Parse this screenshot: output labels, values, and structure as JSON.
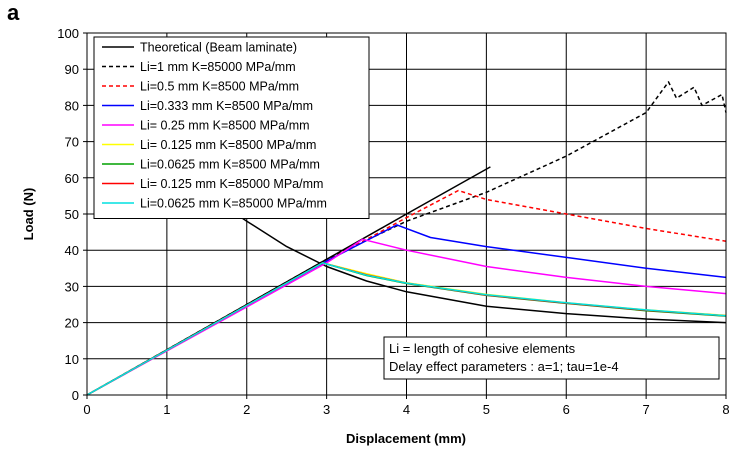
{
  "panel_label": "a",
  "chart_data": {
    "type": "line",
    "title": "",
    "xlabel": "Displacement (mm)",
    "ylabel": "Load (N)",
    "xlim": [
      0,
      8
    ],
    "ylim": [
      0,
      100
    ],
    "xticks": [
      "0",
      "1",
      "2",
      "3",
      "4",
      "5",
      "6",
      "7",
      "8"
    ],
    "yticks": [
      "0",
      "10",
      "20",
      "30",
      "40",
      "50",
      "60",
      "70",
      "80",
      "90",
      "100"
    ],
    "grid": true,
    "legend_position": "top-left",
    "annotation_lines": [
      "Li = length of cohesive elements",
      "Delay effect parameters : a=1; tau=1e-4"
    ],
    "series": [
      {
        "name": "Theoretical (Beam laminate)",
        "color": "#000000",
        "dash": "solid",
        "segments": [
          [
            [
              0,
              0
            ],
            [
              1,
              12.5
            ],
            [
              2,
              25
            ],
            [
              3,
              37.5
            ],
            [
              4,
              50
            ],
            [
              5.05,
              63
            ]
          ],
          [
            [
              1.3,
              60
            ],
            [
              1.6,
              54
            ],
            [
              2,
              48
            ],
            [
              2.5,
              41
            ],
            [
              3,
              35.5
            ],
            [
              3.5,
              31.5
            ],
            [
              4,
              28.5
            ],
            [
              5,
              24.5
            ],
            [
              6,
              22.5
            ],
            [
              7,
              21
            ],
            [
              8,
              20
            ]
          ]
        ]
      },
      {
        "name": "Li=1 mm K=85000 MPa/mm",
        "color": "#000000",
        "dash": "dashed",
        "segments": [
          [
            [
              0,
              0
            ],
            [
              3,
              37.5
            ],
            [
              4,
              48
            ],
            [
              5,
              56
            ],
            [
              6,
              66
            ],
            [
              7,
              78
            ],
            [
              7.28,
              86.5
            ],
            [
              7.38,
              82
            ],
            [
              7.6,
              85
            ],
            [
              7.7,
              80
            ],
            [
              7.95,
              83
            ],
            [
              8,
              78
            ]
          ]
        ]
      },
      {
        "name": "Li=0.5 mm K=8500 MPa/mm",
        "color": "#ff0000",
        "dash": "dashed",
        "segments": [
          [
            [
              0,
              0
            ],
            [
              3,
              37
            ],
            [
              4,
              49
            ],
            [
              4.65,
              56.5
            ],
            [
              5,
              54
            ],
            [
              6,
              50
            ],
            [
              7,
              46
            ],
            [
              8,
              42.5
            ]
          ]
        ]
      },
      {
        "name": "Li=0.333 mm K=8500 MPa/mm",
        "color": "#0000ff",
        "dash": "solid",
        "segments": [
          [
            [
              0,
              0
            ],
            [
              3,
              37
            ],
            [
              3.88,
              47
            ],
            [
              4.3,
              43.5
            ],
            [
              5,
              41
            ],
            [
              6,
              38
            ],
            [
              7,
              35
            ],
            [
              8,
              32.5
            ]
          ]
        ]
      },
      {
        "name": "Li= 0.25 mm K=8500 MPa/mm",
        "color": "#ff00ff",
        "dash": "solid",
        "segments": [
          [
            [
              0,
              0
            ],
            [
              3,
              36.5
            ],
            [
              3.45,
              43
            ],
            [
              4,
              40
            ],
            [
              5,
              35.5
            ],
            [
              6,
              32.5
            ],
            [
              7,
              30
            ],
            [
              8,
              28
            ]
          ]
        ]
      },
      {
        "name": "Li= 0.125 mm K=8500 MPa/mm",
        "color": "#ffff00",
        "dash": "solid",
        "segments": [
          [
            [
              0,
              0
            ],
            [
              2.95,
              36.5
            ],
            [
              3.5,
              33.5
            ],
            [
              4,
              31
            ],
            [
              5,
              27.8
            ],
            [
              6,
              25.5
            ],
            [
              7,
              23.5
            ],
            [
              8,
              22
            ]
          ]
        ]
      },
      {
        "name": "Li=0.0625 mm K=8500 MPa/mm",
        "color": "#00a000",
        "dash": "solid",
        "segments": [
          [
            [
              0,
              0
            ],
            [
              2.95,
              36.5
            ],
            [
              3.5,
              33
            ],
            [
              4,
              30.8
            ],
            [
              5,
              27.5
            ],
            [
              6,
              25.3
            ],
            [
              7,
              23.3
            ],
            [
              8,
              21.8
            ]
          ]
        ]
      },
      {
        "name": "Li= 0.125 mm K=85000 MPa/mm",
        "color": "#ff0000",
        "dash": "solid",
        "segments": [
          [
            [
              0,
              0
            ],
            [
              2.95,
              36.5
            ],
            [
              3.5,
              33.2
            ],
            [
              4,
              30.9
            ],
            [
              5,
              27.6
            ],
            [
              6,
              25.4
            ],
            [
              7,
              23.4
            ],
            [
              8,
              21.9
            ]
          ]
        ]
      },
      {
        "name": "Li=0.0625 mm K=85000 MPa/mm",
        "color": "#00e0e0",
        "dash": "solid",
        "segments": [
          [
            [
              0,
              0
            ],
            [
              2.95,
              36.5
            ],
            [
              3.5,
              33.1
            ],
            [
              4,
              30.9
            ],
            [
              5,
              27.7
            ],
            [
              6,
              25.5
            ],
            [
              7,
              23.5
            ],
            [
              8,
              21.9
            ]
          ]
        ]
      }
    ]
  }
}
